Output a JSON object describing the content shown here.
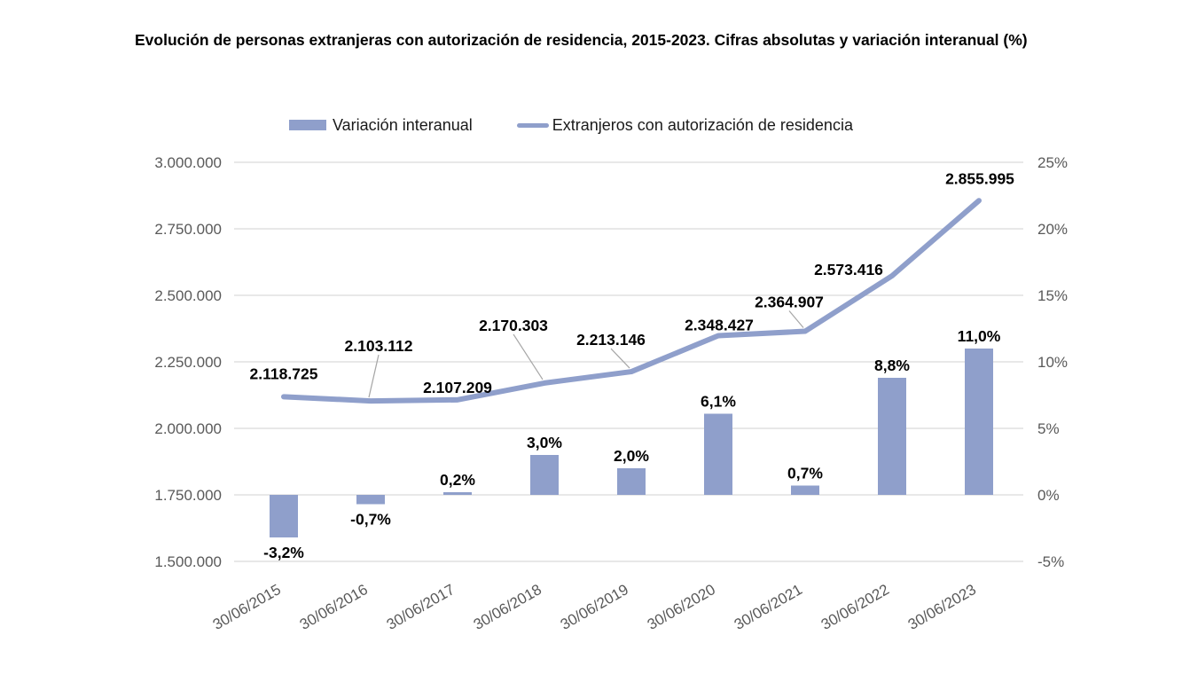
{
  "title": "Evolución de personas extranjeras con autorización de residencia, 2015-2023. Cifras absolutas y variación interanual (%)",
  "legend": {
    "bar_label": "Variación interanual",
    "line_label": "Extranjeros con autorización de residencia"
  },
  "colors": {
    "series": "#8F9FCB",
    "grid": "#D9D9D9",
    "axis_text": "#595959",
    "data_label_text": "#000000",
    "leader": "#A6A6A6"
  },
  "chart_data": {
    "type": "combo-bar-line",
    "title": "Evolución de personas extranjeras con autorización de residencia, 2015-2023. Cifras absolutas y variación interanual (%)",
    "categories": [
      "30/06/2015",
      "30/06/2016",
      "30/06/2017",
      "30/06/2018",
      "30/06/2019",
      "30/06/2020",
      "30/06/2021",
      "30/06/2022",
      "30/06/2023"
    ],
    "series": [
      {
        "name": "Variación interanual",
        "type": "bar",
        "axis": "right",
        "values": [
          -3.2,
          -0.7,
          0.2,
          3.0,
          2.0,
          6.1,
          0.7,
          8.8,
          11.0
        ],
        "labels": [
          "-3,2%",
          "-0,7%",
          "0,2%",
          "3,0%",
          "2,0%",
          "6,1%",
          "0,7%",
          "8,8%",
          "11,0%"
        ]
      },
      {
        "name": "Extranjeros con autorización de residencia",
        "type": "line",
        "axis": "left",
        "values": [
          2118725,
          2103112,
          2107209,
          2170303,
          2213146,
          2348427,
          2364907,
          2573416,
          2855995
        ],
        "labels": [
          "2.118.725",
          "2.103.112",
          "2.107.209",
          "2.170.303",
          "2.213.146",
          "2.348.427",
          "2.364.907",
          "2.573.416",
          "2.855.995"
        ],
        "label_offsets": [
          [
            0,
            -26
          ],
          [
            9,
            -62
          ],
          [
            0,
            -14
          ],
          [
            -35,
            -65
          ],
          [
            -23,
            -36
          ],
          [
            1,
            -12
          ],
          [
            -18,
            -33
          ],
          [
            -49,
            -7
          ],
          [
            1,
            -25
          ]
        ],
        "leaders": [
          false,
          true,
          false,
          true,
          true,
          false,
          true,
          false,
          false
        ]
      }
    ],
    "left_axis": {
      "min": 1500000,
      "max": 3000000,
      "ticks": [
        "3.000.000",
        "2.750.000",
        "2.500.000",
        "2.250.000",
        "2.000.000",
        "1.750.000",
        "1.500.000"
      ]
    },
    "right_axis": {
      "min": -5,
      "max": 25,
      "ticks": [
        "25%",
        "20%",
        "15%",
        "10%",
        "5%",
        "0%",
        "-5%"
      ]
    },
    "grid": true,
    "legend_position": "top"
  }
}
